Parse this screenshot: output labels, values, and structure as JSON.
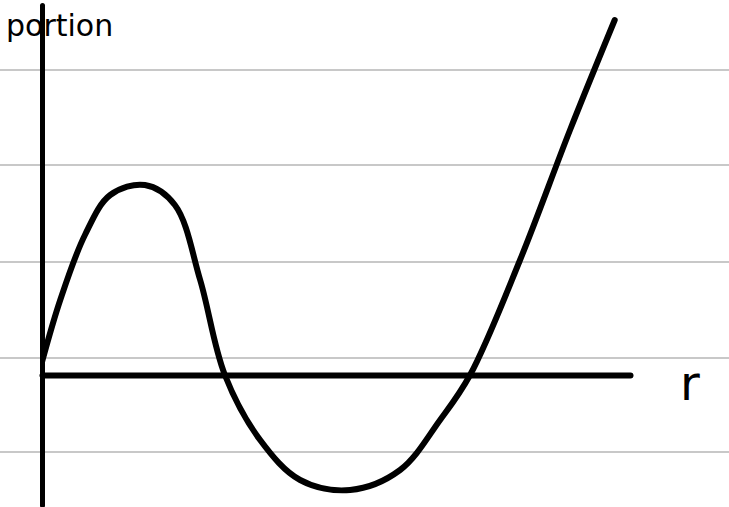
{
  "chart_data": {
    "type": "line",
    "y_label": "portion",
    "x_label": "r",
    "x": [
      0,
      0.31,
      0.73,
      1.16,
      1.75,
      2.26,
      2.69,
      3.11,
      3.71,
      4.39,
      5.24,
      6.09,
      6.77,
      7.28,
      8.13,
      8.98,
      9.74
    ],
    "values": [
      0.13,
      0.75,
      1.4,
      1.8,
      1.9,
      1.7,
      0.95,
      0,
      -0.65,
      -1.05,
      -1.15,
      -0.95,
      -0.45,
      0,
      1.15,
      2.45,
      3.55
    ],
    "xlim": [
      0,
      10
    ],
    "ylim": [
      -1.3,
      3.7
    ],
    "tick_labels": false,
    "color": "#000000"
  }
}
